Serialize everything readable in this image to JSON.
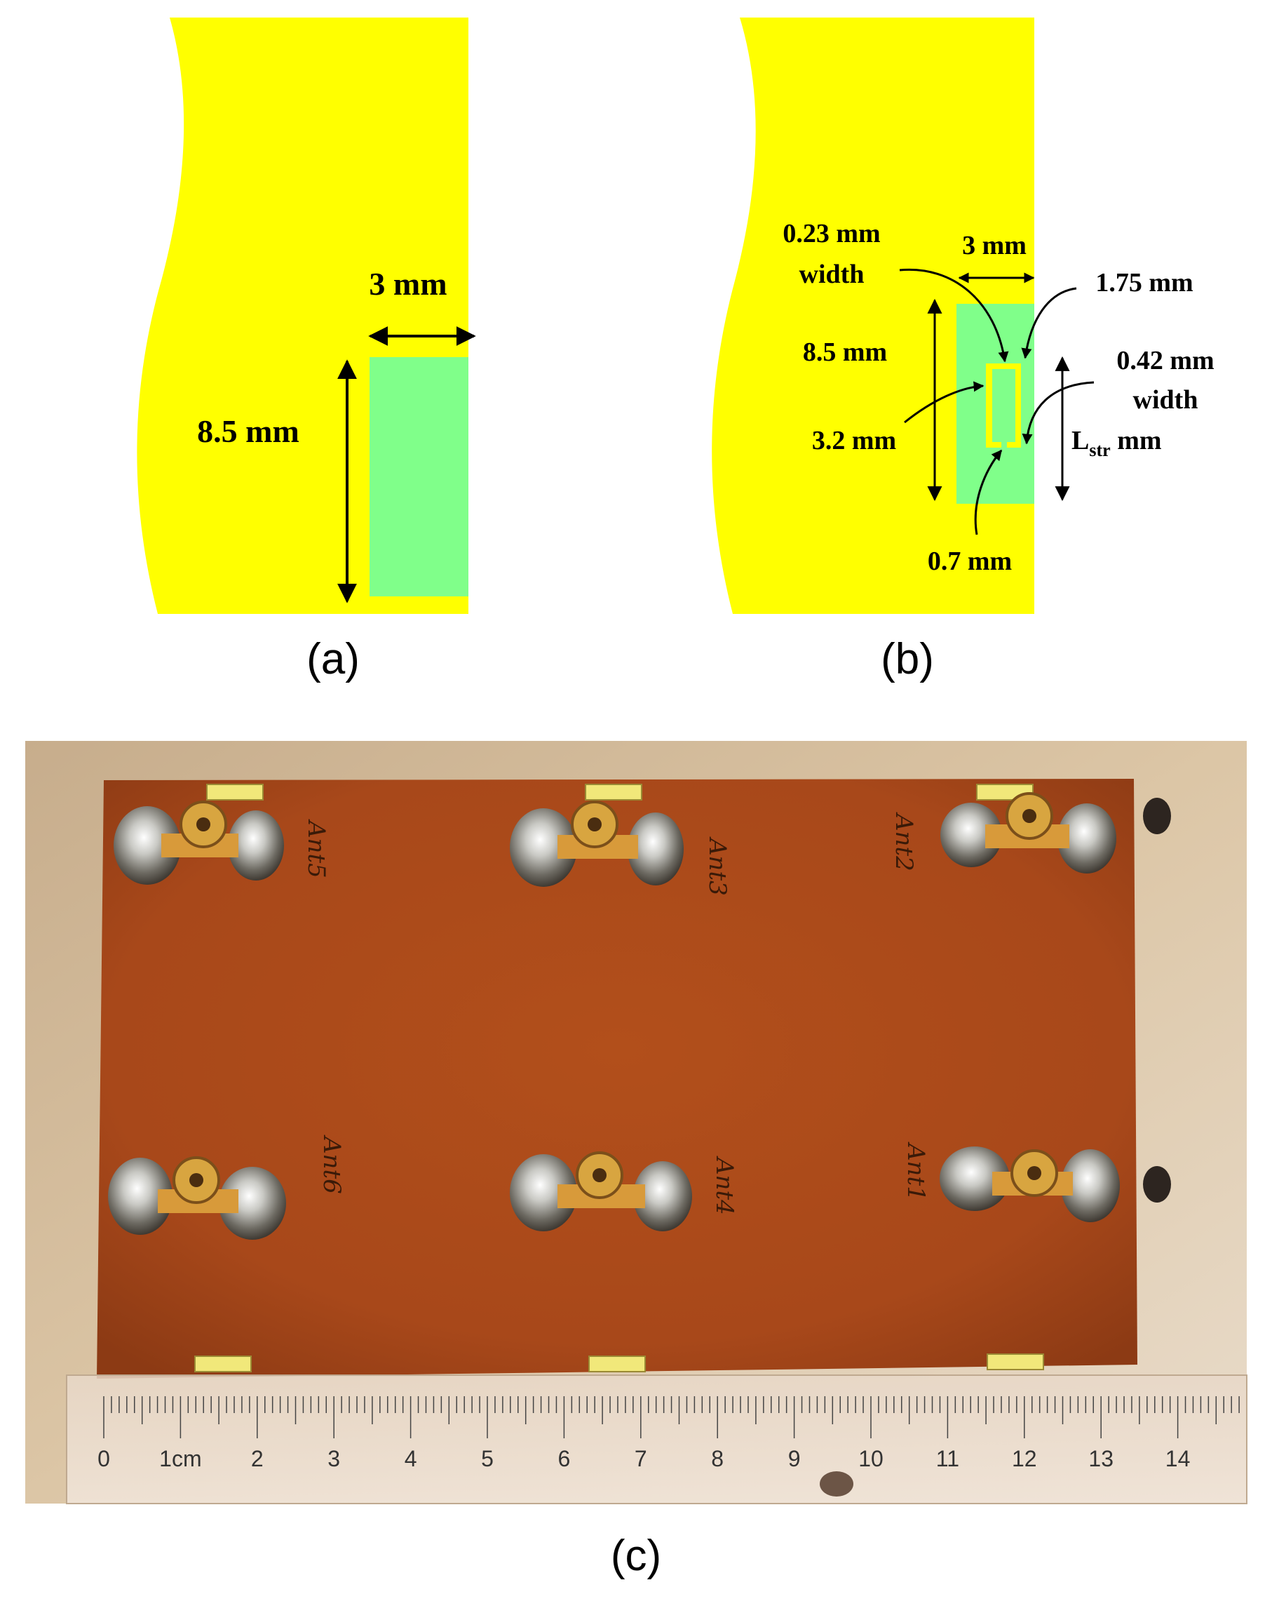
{
  "colors": {
    "copper_yellow": "#ffff00",
    "substrate_green": "#80ff8a",
    "arrow": "#000000",
    "board": "#b5521c",
    "background_photo": "#dcc6a6"
  },
  "panel_a": {
    "caption": "(a)",
    "width_label": "3 mm",
    "height_label": "8.5 mm"
  },
  "panel_b": {
    "caption": "(b)",
    "width_label": "3 mm",
    "height_label": "8.5 mm",
    "slot_width_value": "0.23 mm",
    "slot_width_word": "width",
    "top_gap_label": "1.75 mm",
    "strip_width_value": "0.42 mm",
    "strip_width_word": "width",
    "slot_height_label": "3.2 mm",
    "strip_length_main": "L",
    "strip_length_sub": "str",
    "strip_length_unit": " mm",
    "bottom_gap_label": "0.7 mm"
  },
  "panel_c": {
    "caption": "(c)",
    "antenna_labels": [
      "Ant5",
      "Ant3",
      "Ant2",
      "Ant6",
      "Ant4",
      "Ant1"
    ],
    "ruler_numbers": [
      "0",
      "1cm",
      "2",
      "3",
      "4",
      "5",
      "6",
      "7",
      "8",
      "9",
      "10",
      "11",
      "12",
      "13",
      "14"
    ]
  }
}
